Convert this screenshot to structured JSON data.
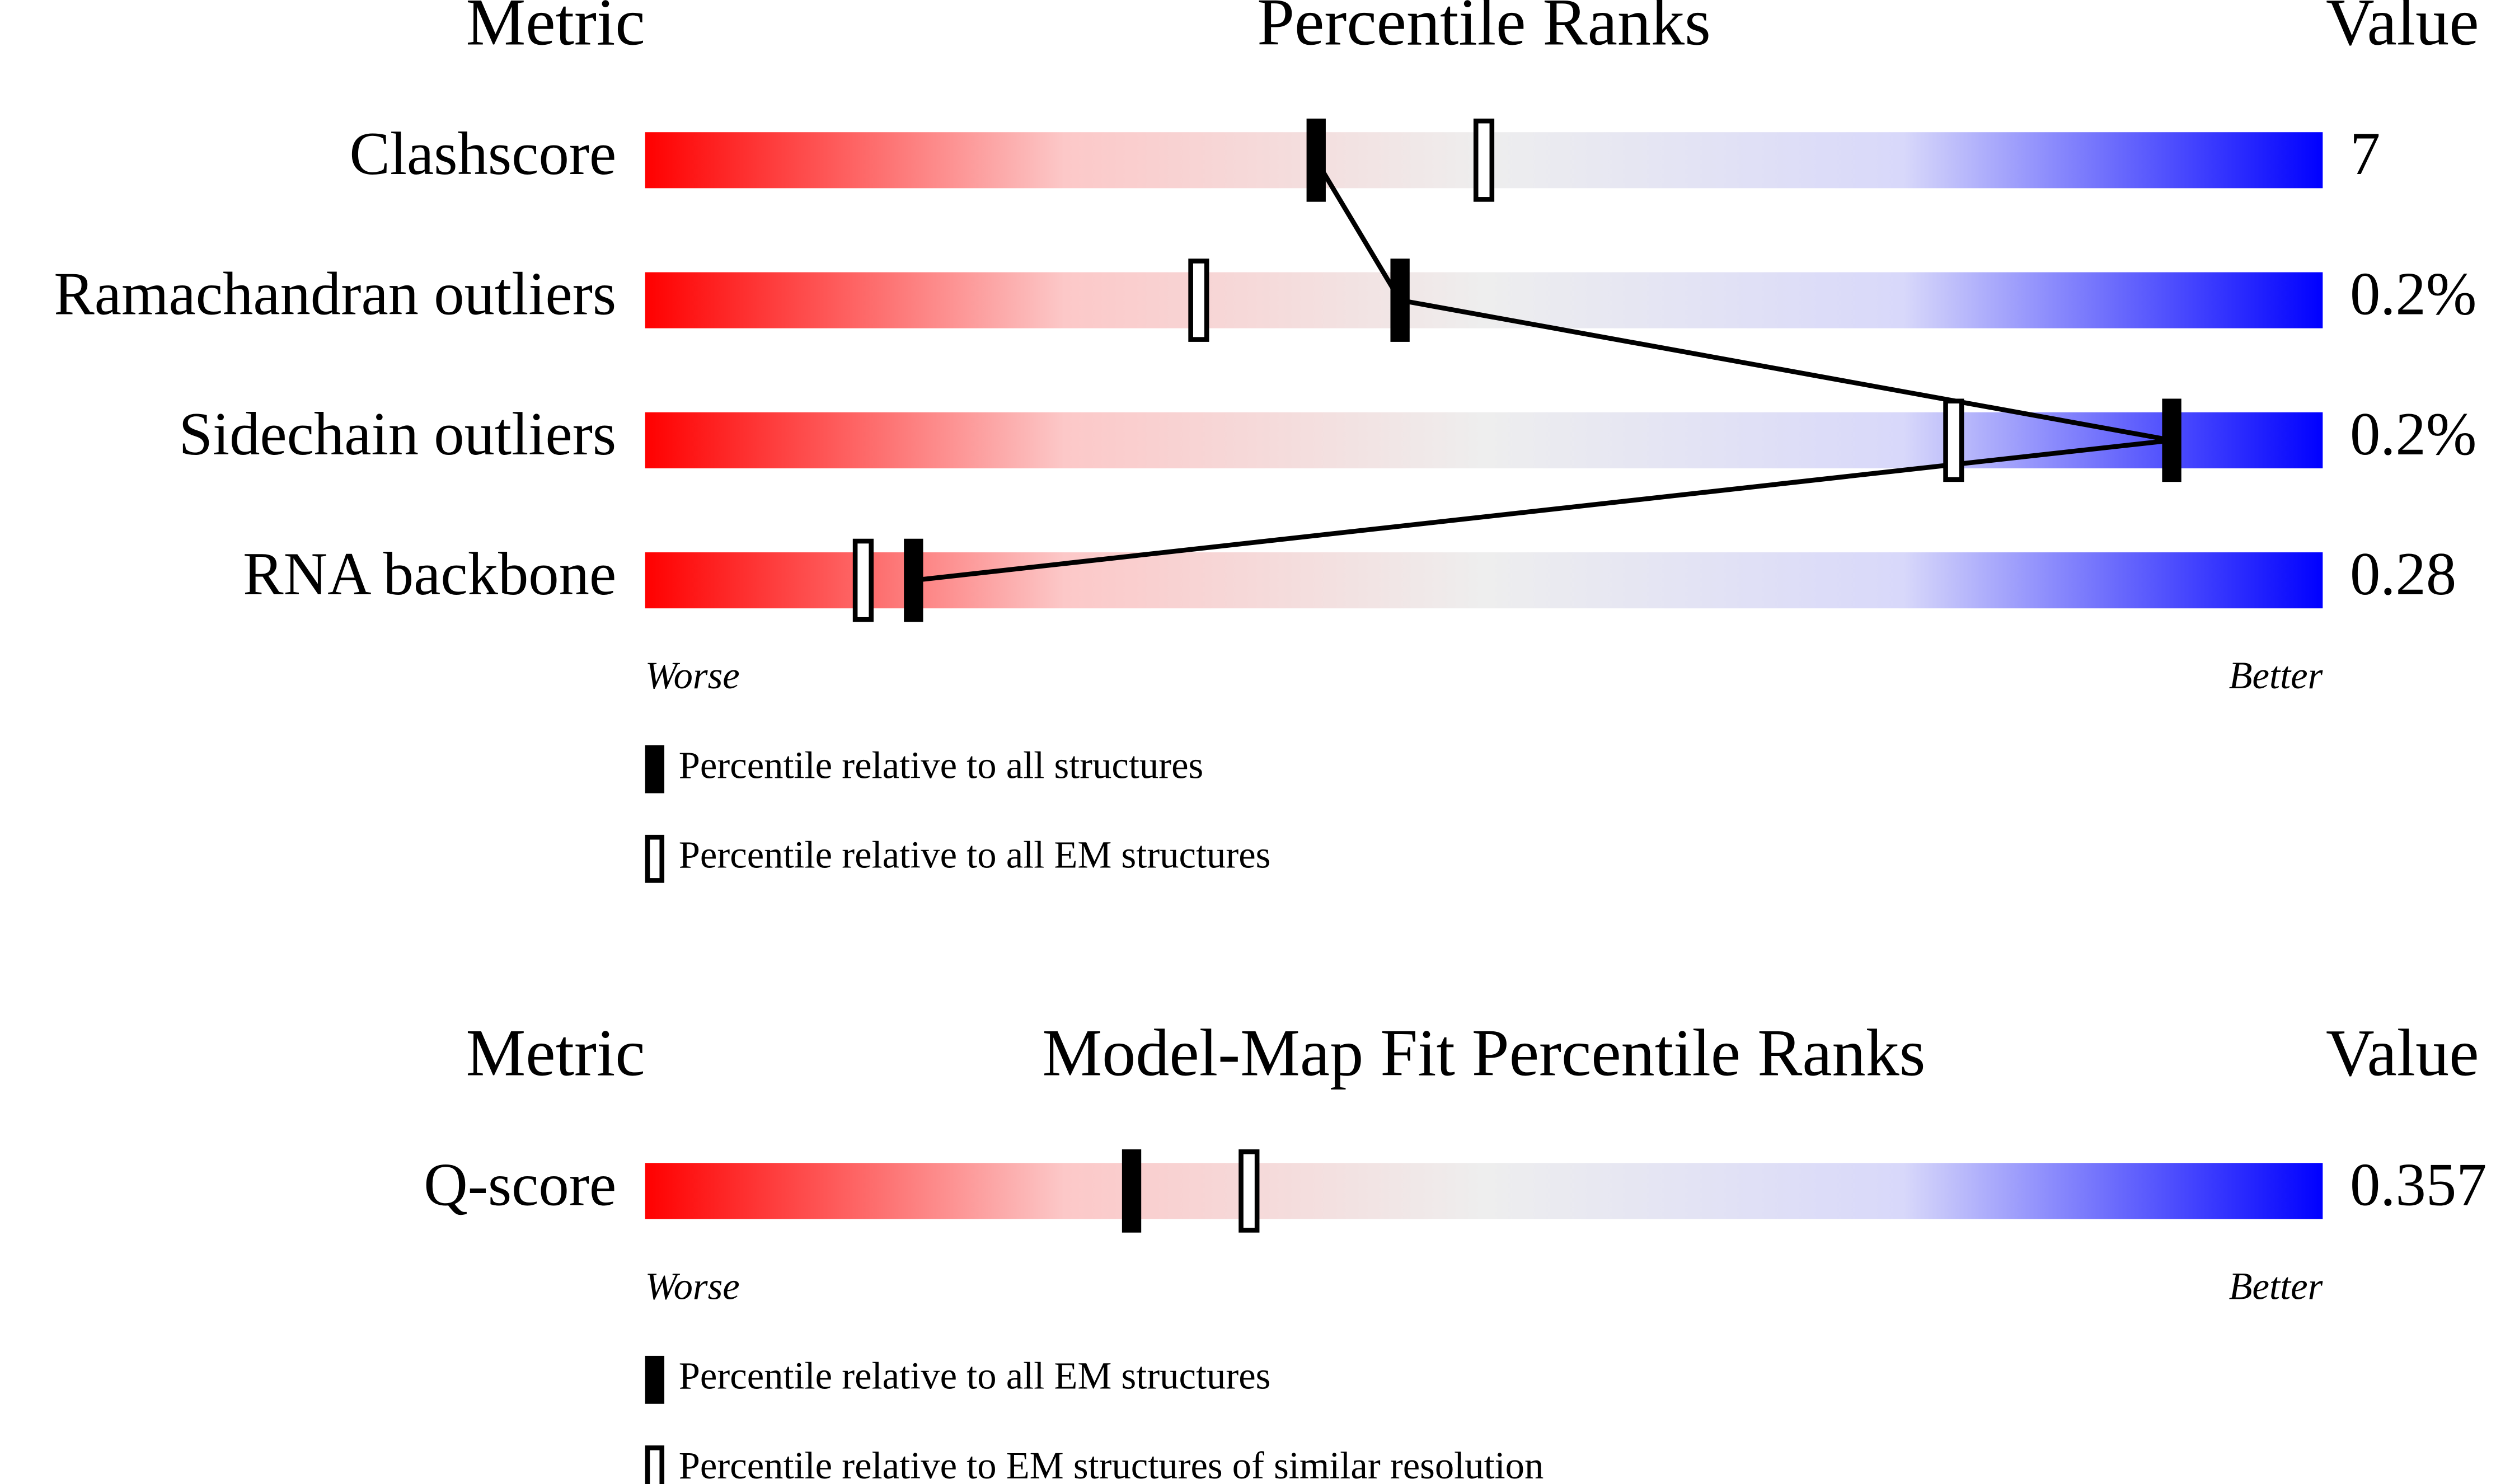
{
  "chart_data": [
    {
      "type": "percentile_slider",
      "metric_header": "Metric",
      "title": "Percentile Ranks",
      "value_header": "Value",
      "categories": [
        "Clashscore",
        "Ramachandran outliers",
        "Sidechain outliers",
        "RNA backbone"
      ],
      "metric_values": [
        "7",
        "0.2%",
        "0.2%",
        "0.28"
      ],
      "series": [
        {
          "name": "Percentile relative to all structures",
          "style": "filled",
          "color": "#000000",
          "values": [
            40,
            45,
            91,
            16
          ]
        },
        {
          "name": "Percentile relative to all EM structures",
          "style": "hollow",
          "color": "#000000",
          "values": [
            50,
            33,
            78,
            13
          ]
        }
      ],
      "connect_filled": true,
      "xlim": [
        0,
        100
      ],
      "worse_label": "Worse",
      "better_label": "Better",
      "gradient": [
        "#ff0000",
        "#fcc8c8",
        "#eeeeee",
        "#d8d8fa",
        "#0000ff"
      ]
    },
    {
      "type": "percentile_slider",
      "metric_header": "Metric",
      "title": "Model-Map Fit Percentile Ranks",
      "value_header": "Value",
      "categories": [
        "Q-score"
      ],
      "metric_values": [
        "0.357"
      ],
      "series": [
        {
          "name": "Percentile relative to all EM structures",
          "style": "filled",
          "color": "#000000",
          "values": [
            29
          ]
        },
        {
          "name": "Percentile relative to EM structures of similar resolution",
          "style": "hollow",
          "color": "#000000",
          "values": [
            36
          ]
        }
      ],
      "connect_filled": true,
      "xlim": [
        0,
        100
      ],
      "worse_label": "Worse",
      "better_label": "Better",
      "gradient": [
        "#ff0000",
        "#fcc8c8",
        "#eeeeee",
        "#d8d8fa",
        "#0000ff"
      ]
    }
  ]
}
